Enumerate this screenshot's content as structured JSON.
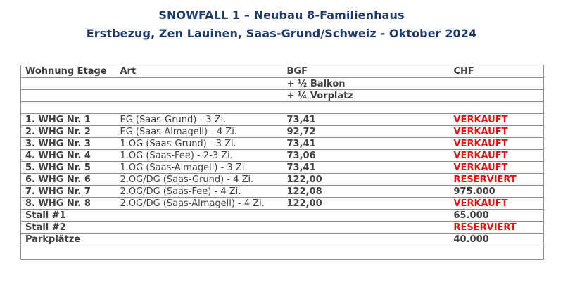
{
  "colors": {
    "navy": "#1e3a68",
    "red": "#de1515",
    "text": "#3f3f3f",
    "border": "#8c8c8c",
    "bg": "#ffffff"
  },
  "title": {
    "line1": "SNOWFALL 1 – Neubau 8-Familienhaus",
    "line2": "Erstbezug, Zen Lauinen, Saas-Grund/Schweiz - Oktober 2024"
  },
  "table": {
    "headers": [
      "Wohnung Etage",
      "Art",
      "BGF",
      "CHF"
    ],
    "bgf_notes": [
      "+ ½ Balkon",
      "+ ¼ Vorplatz"
    ],
    "rows": [
      {
        "wohnung": "1. WHG Nr. 1",
        "art": "EG (Saas-Grund) - 3 Zi.",
        "bgf": "73,41",
        "chf": "VERKAUFT",
        "status": true
      },
      {
        "wohnung": "2. WHG Nr. 2",
        "art": "EG (Saas-Almagell) - 4 Zi.",
        "bgf": "92,72",
        "chf": "VERKAUFT",
        "status": true
      },
      {
        "wohnung": "3. WHG Nr. 3",
        "art": "1.OG (Saas-Grund) - 3 Zi.",
        "bgf": "73,41",
        "chf": "VERKAUFT",
        "status": true
      },
      {
        "wohnung": "4. WHG Nr. 4",
        "art": "1.OG (Saas-Fee) - 2-3 Zi.",
        "bgf": "73,06",
        "chf": "VERKAUFT",
        "status": true
      },
      {
        "wohnung": "5. WHG Nr. 5",
        "art": "1.OG (Saas-Almagell) - 3 Zi.",
        "bgf": "73,41",
        "chf": "VERKAUFT",
        "status": true
      },
      {
        "wohnung": "6. WHG Nr. 6",
        "art": "2.OG/DG (Saas-Grund) - 4 Zi.",
        "bgf": "122,00",
        "chf": "RESERVIERT",
        "status": true
      },
      {
        "wohnung": "7. WHG Nr. 7",
        "art": "2.OG/DG (Saas-Fee) - 4 Zi.",
        "bgf": "122,08",
        "chf": "975.000",
        "status": false
      },
      {
        "wohnung": "8. WHG Nr. 8",
        "art": "2.OG/DG (Saas-Almagell) - 4 Zi.",
        "bgf": "122,00",
        "chf": "VERKAUFT",
        "status": true
      },
      {
        "wohnung": "Stall #1",
        "art": "",
        "bgf": "",
        "chf": "65.000",
        "status": false
      },
      {
        "wohnung": "Stall #2",
        "art": "",
        "bgf": "",
        "chf": "RESERVIERT",
        "status": true
      },
      {
        "wohnung": "Parkplätze",
        "art": "",
        "bgf": "",
        "chf": "40.000",
        "status": false
      }
    ]
  }
}
